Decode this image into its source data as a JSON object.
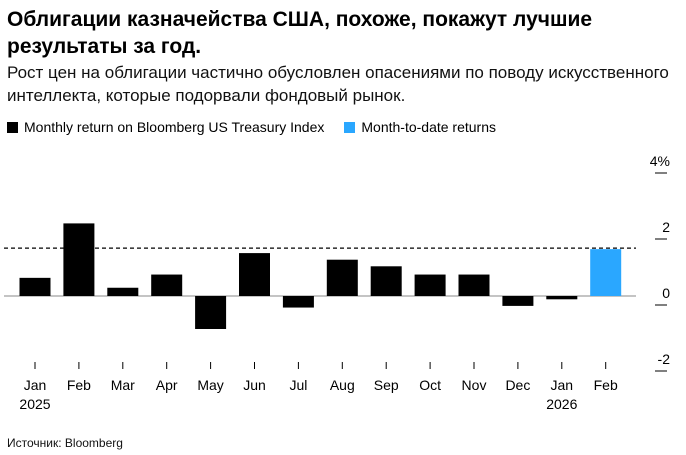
{
  "header": {
    "title": "Облигации казначейства США, похоже, покажут лучшие результаты за год.",
    "subtitle": "Рост цен на облигации частично обусловлен опасениями по поводу искусственного интеллекта, которые подорвали фондовый рынок."
  },
  "source": "Источник: Bloomberg",
  "chart_data": {
    "type": "bar",
    "title": "",
    "xlabel": "",
    "ylabel": "",
    "ylim": [
      -2,
      4
    ],
    "yticks": [
      {
        "value": 4,
        "label": "4%"
      },
      {
        "value": 2,
        "label": "2"
      },
      {
        "value": 0,
        "label": "0"
      },
      {
        "value": -2,
        "label": "-2"
      }
    ],
    "categories": [
      "Jan",
      "Feb",
      "Mar",
      "Apr",
      "May",
      "Jun",
      "Jul",
      "Aug",
      "Sep",
      "Oct",
      "Nov",
      "Dec",
      "Jan",
      "Feb"
    ],
    "year_labels": [
      "2025",
      "",
      "",
      "",
      "",
      "",
      "",
      "",
      "",
      "",
      "",
      "",
      "2026",
      ""
    ],
    "series": [
      {
        "name": "Monthly return on Bloomberg US Treasury Index",
        "color": "#000000",
        "values": [
          0.55,
          2.2,
          0.25,
          0.65,
          -1.0,
          1.3,
          -0.35,
          1.1,
          0.9,
          0.65,
          0.65,
          -0.3,
          -0.1,
          null
        ]
      },
      {
        "name": "Month-to-date returns",
        "color": "#2aa7ff",
        "values": [
          null,
          null,
          null,
          null,
          null,
          null,
          null,
          null,
          null,
          null,
          null,
          null,
          null,
          1.42
        ]
      }
    ],
    "reference_line": {
      "value": 1.45,
      "style": "dashed"
    },
    "grid": false,
    "legend": "top-left"
  }
}
